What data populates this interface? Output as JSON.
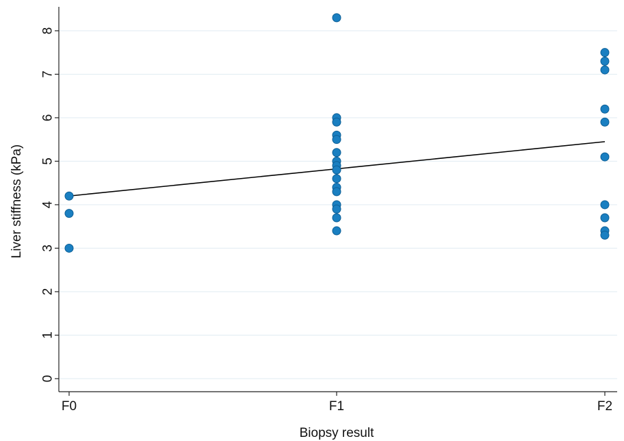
{
  "chart_data": {
    "type": "scatter",
    "title": "",
    "xlabel": "Biopsy result",
    "ylabel": "Liver stiffness (kPa)",
    "categories": [
      "F0",
      "F1",
      "F2"
    ],
    "yticks": [
      0,
      1,
      2,
      3,
      4,
      5,
      6,
      7,
      8
    ],
    "ylim": [
      -0.3,
      8.55
    ],
    "grid": true,
    "legend": "none",
    "point_color": "#1a7fc1",
    "point_edge_color": "#0d5f96",
    "grid_color": "#e3edf3",
    "line_color": "#000000",
    "series": [
      {
        "points": [
          {
            "x": "F0",
            "y": 4.2
          },
          {
            "x": "F0",
            "y": 3.8
          },
          {
            "x": "F0",
            "y": 3.0
          },
          {
            "x": "F1",
            "y": 8.3
          },
          {
            "x": "F1",
            "y": 6.0
          },
          {
            "x": "F1",
            "y": 5.9
          },
          {
            "x": "F1",
            "y": 5.6
          },
          {
            "x": "F1",
            "y": 5.5
          },
          {
            "x": "F1",
            "y": 5.2
          },
          {
            "x": "F1",
            "y": 5.0
          },
          {
            "x": "F1",
            "y": 4.9
          },
          {
            "x": "F1",
            "y": 4.8
          },
          {
            "x": "F1",
            "y": 4.6
          },
          {
            "x": "F1",
            "y": 4.4
          },
          {
            "x": "F1",
            "y": 4.3
          },
          {
            "x": "F1",
            "y": 4.0
          },
          {
            "x": "F1",
            "y": 3.9
          },
          {
            "x": "F1",
            "y": 3.7
          },
          {
            "x": "F1",
            "y": 3.4
          },
          {
            "x": "F2",
            "y": 7.5
          },
          {
            "x": "F2",
            "y": 7.3
          },
          {
            "x": "F2",
            "y": 7.1
          },
          {
            "x": "F2",
            "y": 6.2
          },
          {
            "x": "F2",
            "y": 5.9
          },
          {
            "x": "F2",
            "y": 5.1
          },
          {
            "x": "F2",
            "y": 4.0
          },
          {
            "x": "F2",
            "y": 3.7
          },
          {
            "x": "F2",
            "y": 3.4
          },
          {
            "x": "F2",
            "y": 3.3
          }
        ]
      }
    ],
    "fit_line": {
      "type": "linear",
      "start": {
        "x": "F0",
        "y": 4.2
      },
      "end": {
        "x": "F2",
        "y": 5.45
      }
    }
  }
}
